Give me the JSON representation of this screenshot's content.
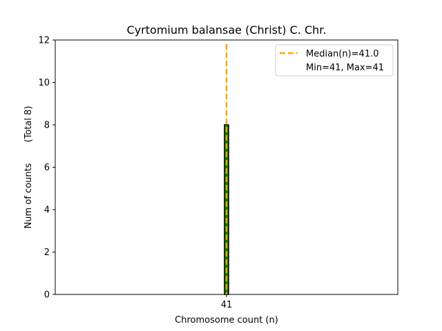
{
  "chart_data": {
    "type": "bar",
    "title": "Cyrtomium balansae (Christ) C. Chr.",
    "xlabel": "Chromosome count (n)",
    "ylabel": "Num of counts",
    "ylabel_total": "(Total 8)",
    "categories": [
      "41"
    ],
    "values": [
      8
    ],
    "ylim": [
      0,
      12
    ],
    "yticks": [
      0,
      2,
      4,
      6,
      8,
      10,
      12
    ],
    "median_line": {
      "value": 41.0,
      "label": "Median(n)=41.0"
    },
    "legend": {
      "placement": "top-right",
      "entries": [
        "Median(n)=41.0",
        "Min=41, Max=41"
      ]
    },
    "grid": false,
    "colors": {
      "bar_fill": "#008000",
      "bar_edge": "#000000",
      "median_line": "#FFA500"
    }
  }
}
